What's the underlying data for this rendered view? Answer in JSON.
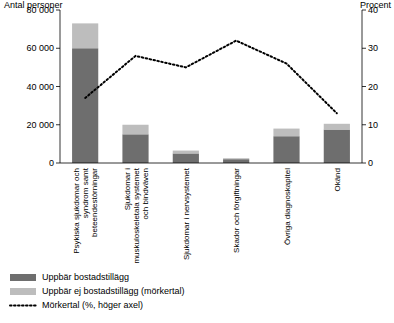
{
  "chart_data": {
    "type": "bar",
    "stacked": true,
    "y_label": "Antal personer",
    "y2_label": "Procent",
    "categories": [
      "Psykiska sjukdomar och syndrom samt beteendestörningar",
      "Sjukdomar i muskuloskeletala systemet och bindväven",
      "Sjukdomar i nervsystemet",
      "Skador och förgiftningar",
      "Övriga diagnoskapitel",
      "Okänd"
    ],
    "series": [
      {
        "name": "Uppbär bostadstillägg",
        "type": "bar",
        "color": "#6e6e6e",
        "values": [
          60000,
          15000,
          5000,
          2000,
          14000,
          17500
        ]
      },
      {
        "name": "Uppbär ej bostadstillägg (mörkertal)",
        "type": "bar",
        "color": "#bdbdbd",
        "values": [
          13000,
          5000,
          1500,
          500,
          4000,
          3000
        ]
      },
      {
        "name": "Mörkertal (%, höger axel)",
        "type": "line",
        "axis": "y2",
        "color": "#000000",
        "line_style": "dotted",
        "values": [
          17,
          28,
          25,
          32,
          26,
          13
        ]
      }
    ],
    "ylim": [
      0,
      80000
    ],
    "yticks": [
      0,
      {
        "value": 20000,
        "label": "20 000"
      },
      {
        "value": 40000,
        "label": "40 000"
      },
      {
        "value": 60000,
        "label": "60 000"
      },
      {
        "value": 80000,
        "label": "80 000"
      }
    ],
    "y2lim": [
      0,
      40
    ],
    "y2ticks": [
      0,
      10,
      20,
      30,
      40
    ],
    "legend": "bottom"
  }
}
